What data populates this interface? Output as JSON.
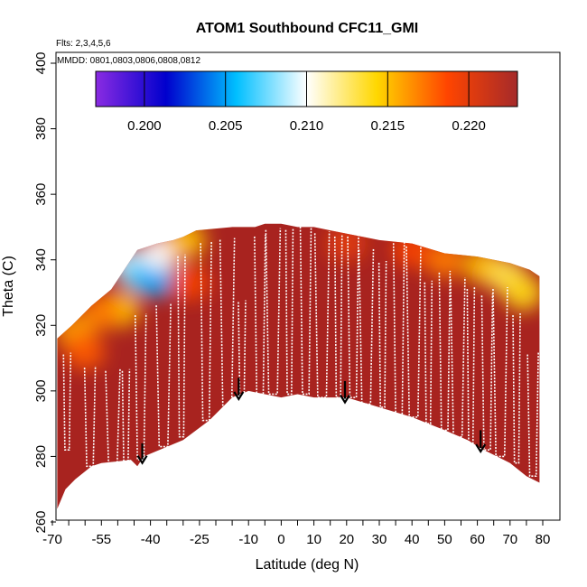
{
  "chart_data": {
    "type": "heatmap",
    "title": "ATOM1 Southbound CFC11_GMI",
    "flights_note": "Flts: 2,3,4,5,6",
    "dates_note": "MMDD: 0801,0803,0806,0808,0812",
    "xlabel": "Latitude (deg N)",
    "ylabel": "Theta (C)",
    "xlim": [
      -70,
      80
    ],
    "ylim": [
      260,
      400
    ],
    "x_tick_labels": [
      "-70",
      "-55",
      "-40",
      "-25",
      "-10",
      "0",
      "10",
      "20",
      "30",
      "40",
      "50",
      "60",
      "70",
      "80"
    ],
    "x_ticks": [
      -70,
      -55,
      -40,
      -25,
      -10,
      0,
      10,
      20,
      30,
      40,
      50,
      60,
      70,
      80
    ],
    "x_minor_ticks": [
      -65,
      -60,
      -50,
      -45,
      -35,
      -30,
      -20,
      -15,
      -5,
      5,
      15,
      25,
      35,
      45,
      55,
      65,
      75
    ],
    "y_tick_labels": [
      "260",
      "280",
      "300",
      "320",
      "340",
      "360",
      "380",
      "400"
    ],
    "y_ticks": [
      260,
      280,
      300,
      320,
      340,
      360,
      380,
      400
    ],
    "colorbar": {
      "range": [
        0.197,
        0.223
      ],
      "tick_labels": [
        "0.200",
        "0.205",
        "0.210",
        "0.215",
        "0.220"
      ],
      "ticks": [
        0.2,
        0.205,
        0.21,
        0.215,
        0.22
      ],
      "colors": [
        "#8a2be2",
        "#0000cd",
        "#00bfff",
        "#ffffff",
        "#ffd700",
        "#ff4500",
        "#a52a2a"
      ]
    },
    "floor_profile": [
      [
        -68.5,
        264
      ],
      [
        -66,
        270
      ],
      [
        -63,
        273
      ],
      [
        -58,
        277
      ],
      [
        -55,
        278
      ],
      [
        -50,
        278.5
      ],
      [
        -46,
        279
      ],
      [
        -44,
        277
      ],
      [
        -42,
        280
      ],
      [
        -30,
        285
      ],
      [
        -22,
        291
      ],
      [
        -15,
        298
      ],
      [
        -10,
        300
      ],
      [
        -5,
        299
      ],
      [
        0,
        298
      ],
      [
        5,
        299
      ],
      [
        10,
        298
      ],
      [
        20,
        298
      ],
      [
        30,
        295
      ],
      [
        40,
        292
      ],
      [
        50,
        288
      ],
      [
        57,
        285
      ],
      [
        62,
        282
      ],
      [
        70,
        278
      ],
      [
        75,
        274
      ],
      [
        79,
        272
      ]
    ],
    "top_profile": [
      [
        -68.5,
        316
      ],
      [
        -64,
        320
      ],
      [
        -58,
        326
      ],
      [
        -52,
        331
      ],
      [
        -48,
        337
      ],
      [
        -44,
        343
      ],
      [
        -38,
        345
      ],
      [
        -33,
        346
      ],
      [
        -30,
        347
      ],
      [
        -26,
        349
      ],
      [
        -15,
        350
      ],
      [
        -8,
        350
      ],
      [
        -5,
        351
      ],
      [
        0,
        351
      ],
      [
        5,
        350
      ],
      [
        10,
        350
      ],
      [
        15,
        349
      ],
      [
        20,
        348
      ],
      [
        25,
        347
      ],
      [
        30,
        346
      ],
      [
        40,
        345
      ],
      [
        50,
        342
      ],
      [
        60,
        341
      ],
      [
        70,
        339
      ],
      [
        76,
        337
      ],
      [
        79,
        335
      ]
    ],
    "field_blobs": [
      {
        "lat": -46,
        "theta": 338,
        "value": 0.209
      },
      {
        "lat": -42,
        "theta": 335,
        "value": 0.207
      },
      {
        "lat": -38,
        "theta": 334,
        "value": 0.205
      },
      {
        "lat": -37,
        "theta": 342,
        "value": 0.21
      },
      {
        "lat": -49,
        "theta": 325,
        "value": 0.215
      },
      {
        "lat": -55,
        "theta": 324,
        "value": 0.217
      },
      {
        "lat": -63,
        "theta": 318,
        "value": 0.216
      },
      {
        "lat": -60,
        "theta": 312,
        "value": 0.218
      },
      {
        "lat": -29,
        "theta": 346,
        "value": 0.215
      },
      {
        "lat": -28,
        "theta": 333,
        "value": 0.219
      },
      {
        "lat": 50,
        "theta": 340,
        "value": 0.217
      },
      {
        "lat": 62,
        "theta": 338,
        "value": 0.215
      },
      {
        "lat": 69,
        "theta": 335,
        "value": 0.213
      },
      {
        "lat": 74,
        "theta": 330,
        "value": 0.214
      },
      {
        "lat": 40,
        "theta": 343,
        "value": 0.219
      },
      {
        "lat": 20,
        "theta": 345,
        "value": 0.22
      }
    ],
    "profile_columns": [
      {
        "x": -65.5,
        "bottom": 282,
        "top": 310
      },
      {
        "x": -58.5,
        "bottom": 277,
        "top": 306
      },
      {
        "x": -51.5,
        "bottom": 278,
        "top": 305
      },
      {
        "x": -47.5,
        "bottom": 278,
        "top": 305
      },
      {
        "x": -43.0,
        "bottom": 279,
        "top": 322
      },
      {
        "x": -36.0,
        "bottom": 283,
        "top": 325
      },
      {
        "x": -30.5,
        "bottom": 286,
        "top": 340
      },
      {
        "x": -23.0,
        "bottom": 291,
        "top": 344
      },
      {
        "x": -16.5,
        "bottom": 293,
        "top": 345
      },
      {
        "x": -12.0,
        "bottom": 298,
        "top": 326
      },
      {
        "x": -6.5,
        "bottom": 299,
        "top": 346
      },
      {
        "x": -2.5,
        "bottom": 299,
        "top": 348
      },
      {
        "x": 2.5,
        "bottom": 299,
        "top": 348
      },
      {
        "x": 7.5,
        "bottom": 299,
        "top": 349
      },
      {
        "x": 12.5,
        "bottom": 298,
        "top": 347
      },
      {
        "x": 17.5,
        "bottom": 298,
        "top": 346
      },
      {
        "x": 22.0,
        "bottom": 298,
        "top": 346
      },
      {
        "x": 26.0,
        "bottom": 296,
        "top": 342
      },
      {
        "x": 31.0,
        "bottom": 295,
        "top": 338
      },
      {
        "x": 36.0,
        "bottom": 292,
        "top": 344
      },
      {
        "x": 40.5,
        "bottom": 292,
        "top": 343
      },
      {
        "x": 45.0,
        "bottom": 290,
        "top": 332
      },
      {
        "x": 50.0,
        "bottom": 288,
        "top": 335
      },
      {
        "x": 54.0,
        "bottom": 286,
        "top": 333
      },
      {
        "x": 58.0,
        "bottom": 284,
        "top": 330
      },
      {
        "x": 63.0,
        "bottom": 282,
        "top": 328
      },
      {
        "x": 67.0,
        "bottom": 280,
        "top": 330
      },
      {
        "x": 72.0,
        "bottom": 278,
        "top": 322
      },
      {
        "x": 77.0,
        "bottom": 274,
        "top": 310
      }
    ],
    "arrows": [
      {
        "lat": -42.5,
        "theta_start": 284,
        "theta_end": 278
      },
      {
        "lat": -13.0,
        "theta_start": 304,
        "theta_end": 297.5
      },
      {
        "lat": 19.5,
        "theta_start": 303,
        "theta_end": 296.5
      },
      {
        "lat": 61.0,
        "theta_start": 288,
        "theta_end": 281.5
      }
    ]
  }
}
